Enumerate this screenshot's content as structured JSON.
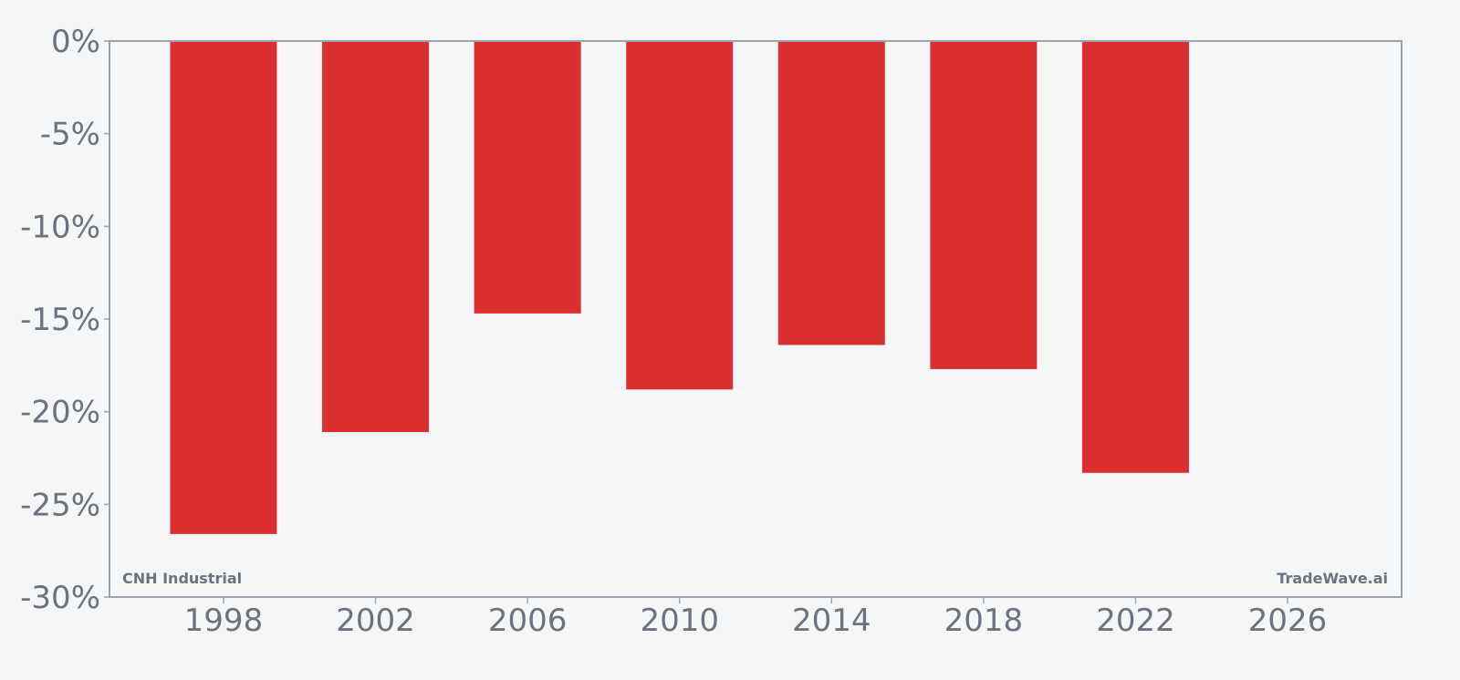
{
  "chart_data": {
    "type": "bar",
    "x": [
      1998,
      2002,
      2006,
      2010,
      2014,
      2018,
      2022
    ],
    "values": [
      -26.6,
      -21.1,
      -14.7,
      -18.8,
      -16.4,
      -17.7,
      -23.3
    ],
    "bar_color": "#dc3030",
    "xlim": [
      1995,
      2029
    ],
    "ylim": [
      -30,
      0
    ],
    "x_ticks": [
      1998,
      2002,
      2006,
      2010,
      2014,
      2018,
      2022,
      2026
    ],
    "x_tick_labels": [
      "1998",
      "2002",
      "2006",
      "2010",
      "2014",
      "2018",
      "2022",
      "2026"
    ],
    "y_ticks": [
      0,
      -5,
      -10,
      -15,
      -20,
      -25,
      -30
    ],
    "y_tick_labels": [
      "0%",
      "-5%",
      "-10%",
      "-15%",
      "-20%",
      "-25%",
      "-30%"
    ],
    "title": "",
    "xlabel": "",
    "ylabel": "",
    "grid": false,
    "axis_color": "#9ca3af",
    "text_color": "#6b7280"
  },
  "watermark": {
    "left": "CNH Industrial",
    "right": "TradeWave.ai"
  }
}
